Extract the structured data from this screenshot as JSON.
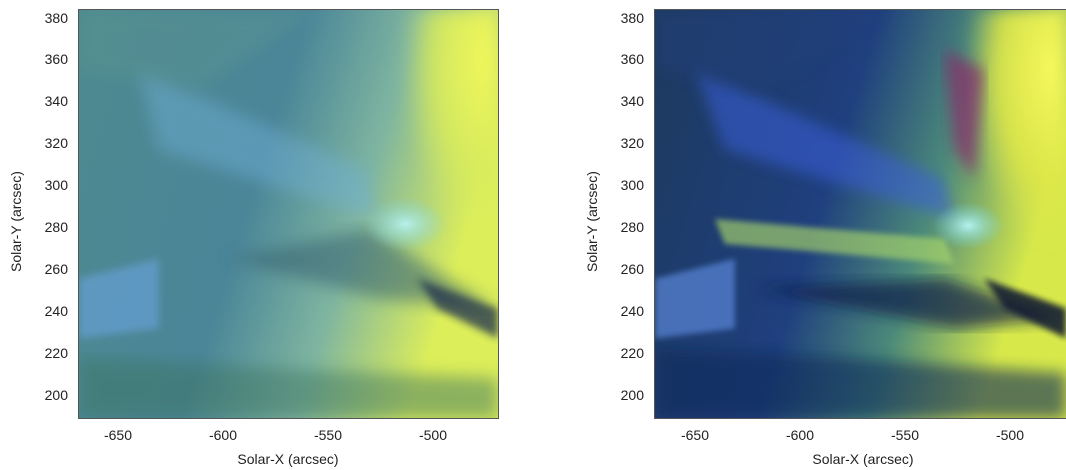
{
  "panels": [
    {
      "xlabel": "Solar-X (arcsec)",
      "ylabel": "Solar-Y (arcsec)",
      "xticks": [
        "-650",
        "-600",
        "-550",
        "-500"
      ],
      "yticks": [
        "380",
        "360",
        "340",
        "320",
        "300",
        "280",
        "260",
        "240",
        "220",
        "200"
      ],
      "image": "solar-corona-composite-smooth"
    },
    {
      "xlabel": "Solar-X (arcsec)",
      "ylabel": "Solar-Y (arcsec)",
      "xticks": [
        "-650",
        "-600",
        "-550",
        "-500"
      ],
      "yticks": [
        "380",
        "360",
        "340",
        "320",
        "300",
        "280",
        "260",
        "240",
        "220",
        "200"
      ],
      "image": "solar-corona-composite-enhanced"
    }
  ],
  "axes": {
    "xlim": [
      -672,
      -472
    ],
    "ylim": [
      190,
      384
    ]
  },
  "colors": {
    "bluegreen": "#3f7f8f",
    "yellow": "#eaf24a",
    "deepblue": "#142a6a",
    "cyan": "#9fe8f0"
  }
}
